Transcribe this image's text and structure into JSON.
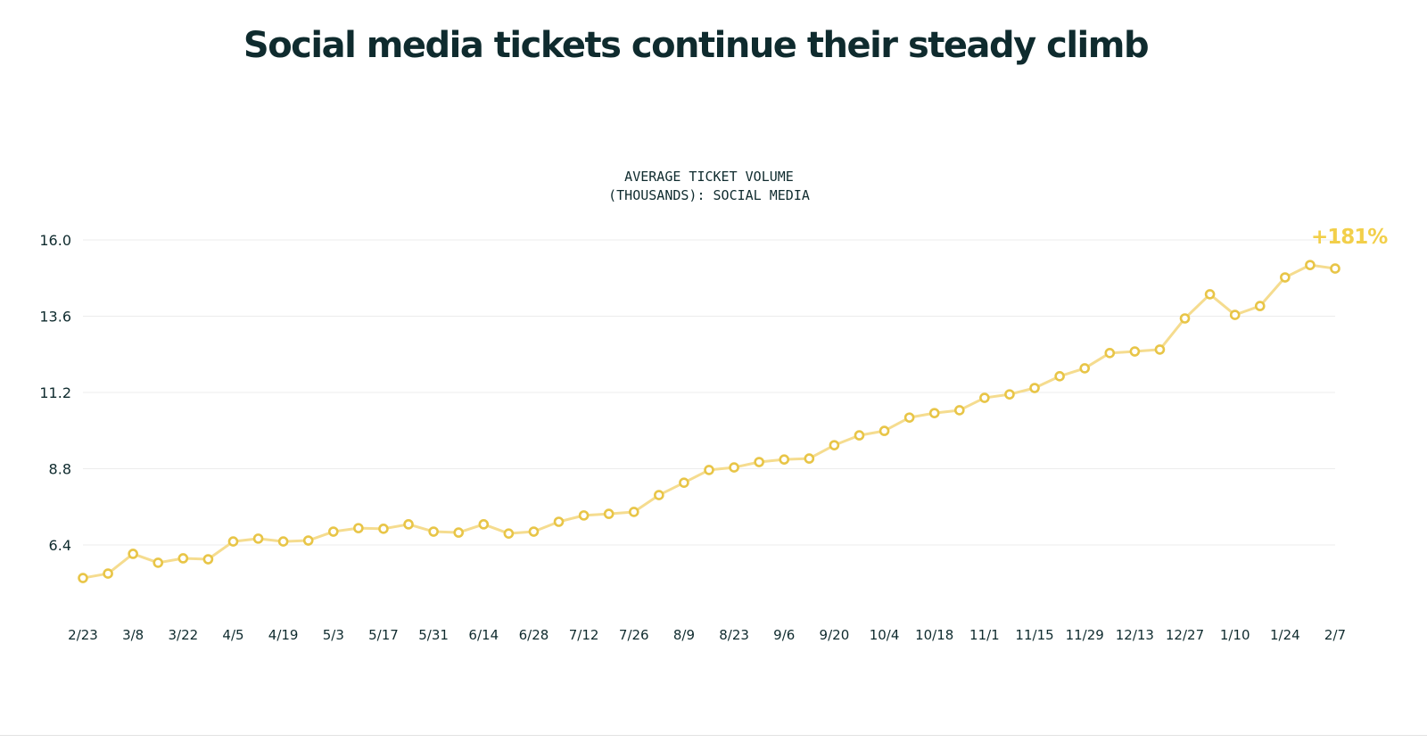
{
  "chart_data": {
    "type": "line",
    "title": "Social media tickets continue their steady climb",
    "subtitle_lines": [
      "AVERAGE TICKET VOLUME",
      "(THOUSANDS): SOCIAL MEDIA"
    ],
    "xlabel": "",
    "ylabel": "",
    "ylim": [
      4.8,
      16.0
    ],
    "yticks": [
      16.0,
      13.6,
      11.2,
      8.8,
      6.4
    ],
    "ytick_labels": [
      "16.0",
      "13.6",
      "11.2",
      "8.8",
      "6.4"
    ],
    "grid": true,
    "xtick_labels": [
      "2/23",
      "3/8",
      "3/22",
      "4/5",
      "4/19",
      "5/3",
      "5/17",
      "5/31",
      "6/14",
      "6/28",
      "7/12",
      "7/26",
      "8/9",
      "8/23",
      "9/6",
      "9/20",
      "10/4",
      "10/18",
      "11/1",
      "11/15",
      "11/29",
      "12/13",
      "12/27",
      "1/10",
      "1/24",
      "2/7"
    ],
    "series": [
      {
        "name": "Social media",
        "values": [
          5.36,
          5.5,
          6.12,
          5.84,
          5.98,
          5.95,
          6.51,
          6.6,
          6.51,
          6.54,
          6.82,
          6.93,
          6.91,
          7.05,
          6.82,
          6.79,
          7.05,
          6.76,
          6.82,
          7.13,
          7.33,
          7.38,
          7.44,
          7.97,
          8.36,
          8.76,
          8.84,
          9.01,
          9.09,
          9.12,
          9.54,
          9.85,
          9.99,
          10.41,
          10.55,
          10.64,
          11.03,
          11.14,
          11.34,
          11.71,
          11.96,
          12.44,
          12.49,
          12.55,
          13.53,
          14.29,
          13.64,
          13.92,
          14.82,
          15.21,
          15.1
        ]
      }
    ],
    "annotation": "+181%",
    "colors": {
      "line": "#f5dc8f",
      "marker": "#e8c547",
      "annotation": "#f2cf4a",
      "text": "#0f2b2e",
      "grid": "#ececec"
    }
  }
}
